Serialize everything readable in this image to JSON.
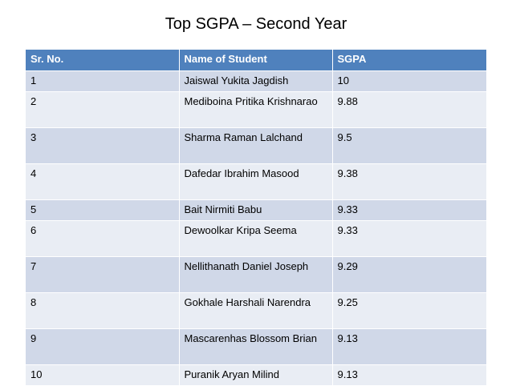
{
  "title": "Top SGPA – Second Year",
  "table": {
    "headers": [
      "Sr. No.",
      "Name of Student",
      "SGPA"
    ],
    "rows": [
      [
        "1",
        "Jaiswal Yukita Jagdish",
        "10"
      ],
      [
        "2",
        "Mediboina Pritika Krishnarao",
        "9.88"
      ],
      [
        "3",
        "Sharma Raman Lalchand",
        "9.5"
      ],
      [
        "4",
        "Dafedar Ibrahim Masood",
        "9.38"
      ],
      [
        "5",
        "Bait Nirmiti Babu",
        "9.33"
      ],
      [
        "6",
        "Dewoolkar Kripa Seema",
        "9.33"
      ],
      [
        "7",
        "Nellithanath Daniel Joseph",
        "9.29"
      ],
      [
        "8",
        "Gokhale Harshali Narendra",
        "9.25"
      ],
      [
        "9",
        "Mascarenhas Blossom Brian",
        "9.13"
      ],
      [
        "10",
        "Puranik Aryan Milind",
        "9.13"
      ]
    ]
  },
  "colors": {
    "header_bg": "#4f81bd",
    "row_band_dark": "#d0d8e8",
    "row_band_light": "#e9edf4"
  }
}
